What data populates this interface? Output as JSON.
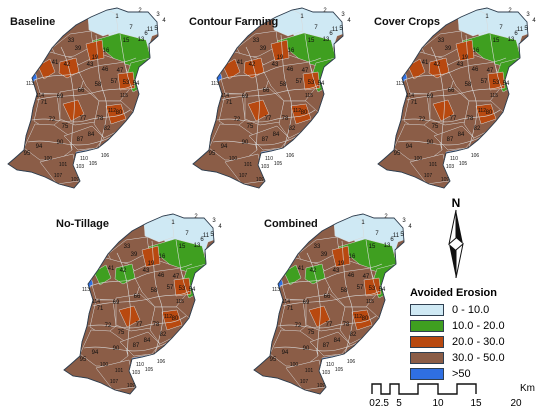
{
  "panels": [
    {
      "title": "Baseline",
      "scenario": "baseline"
    },
    {
      "title": "Contour Farming",
      "scenario": "contour"
    },
    {
      "title": "Cover Crops",
      "scenario": "cover"
    },
    {
      "title": "No-Tillage",
      "scenario": "notill"
    },
    {
      "title": "Combined",
      "scenario": "combined"
    }
  ],
  "north_arrow": {
    "label": "N"
  },
  "legend": {
    "title": "Avoided Erosion",
    "items": [
      {
        "label": "0 - 10.0",
        "color": "#cfe9f4"
      },
      {
        "label": "10.0 - 20.0",
        "color": "#3f9f20"
      },
      {
        "label": "20.0 - 30.0",
        "color": "#b84910"
      },
      {
        "label": "30.0 - 50.0",
        "color": "#8b5d47"
      },
      {
        "label": ">50",
        "color": "#2f6fe2"
      }
    ]
  },
  "scale_bar": {
    "ticks": [
      "0",
      "2.5",
      "5",
      "10",
      "15",
      "20"
    ],
    "unit": "Km"
  },
  "map_labels": [
    "1",
    "2",
    "3",
    "4",
    "5",
    "6",
    "7",
    "11",
    "13",
    "15",
    "16",
    "19",
    "33",
    "39",
    "41",
    "42",
    "43",
    "46",
    "47",
    "53",
    "54",
    "57",
    "58",
    "66",
    "69",
    "71",
    "72",
    "75",
    "77",
    "78",
    "80",
    "82",
    "84",
    "87",
    "90",
    "94",
    "95",
    "100",
    "101",
    "103",
    "105",
    "106",
    "107",
    "109",
    "110",
    "112",
    "113",
    "114",
    "115"
  ]
}
